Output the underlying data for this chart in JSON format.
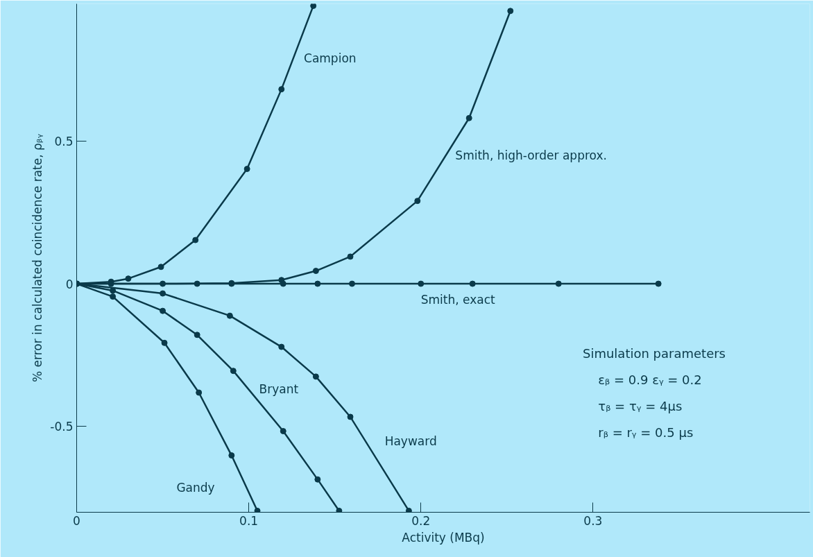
{
  "chart_data": {
    "type": "line",
    "xlabel": "Activity (MBq)",
    "ylabel": "% error in calculated coincidence rate, ρᵦᵧ",
    "xlim": [
      0,
      0.426
    ],
    "ylim": [
      -0.8,
      0.98
    ],
    "xticks": [
      0,
      0.1,
      0.2,
      0.3
    ],
    "yticks": [
      -0.5,
      0,
      0.5
    ],
    "grid": false,
    "marker": "circle",
    "line_style": "solid",
    "series": [
      {
        "name": "Campion",
        "color": "#0a3a4a",
        "x": [
          0,
          0.02,
          0.03,
          0.049,
          0.069,
          0.099,
          0.119,
          0.1375
        ],
        "values": [
          0,
          0.007,
          0.018,
          0.059,
          0.153,
          0.402,
          0.681,
          0.973
        ]
      },
      {
        "name": "Smith, high-order approx.",
        "color": "#0a3a4a",
        "x": [
          0,
          0.05,
          0.09,
          0.119,
          0.139,
          0.159,
          0.198,
          0.228,
          0.252
        ],
        "values": [
          0,
          0,
          0.002,
          0.013,
          0.045,
          0.095,
          0.29,
          0.58,
          0.955
        ]
      },
      {
        "name": "Smith, exact",
        "color": "#0a3a4a",
        "x": [
          0,
          0.02,
          0.07,
          0.09,
          0.12,
          0.14,
          0.16,
          0.2,
          0.23,
          0.28,
          0.338
        ],
        "values": [
          0,
          0,
          0,
          0,
          0,
          0,
          0,
          0,
          0,
          0,
          0
        ]
      },
      {
        "name": "Hayward",
        "color": "#0a3a4a",
        "x": [
          0,
          0.05,
          0.089,
          0.119,
          0.139,
          0.159,
          0.193
        ],
        "values": [
          0,
          -0.034,
          -0.112,
          -0.221,
          -0.325,
          -0.466,
          -0.795
        ]
      },
      {
        "name": "Bryant",
        "color": "#0a3a4a",
        "x": [
          0,
          0.021,
          0.05,
          0.07,
          0.091,
          0.12,
          0.14,
          0.1525
        ],
        "values": [
          0,
          -0.024,
          -0.095,
          -0.179,
          -0.305,
          -0.516,
          -0.685,
          -0.795
        ]
      },
      {
        "name": "Gandy",
        "color": "#0a3a4a",
        "x": [
          0,
          0.021,
          0.051,
          0.071,
          0.09,
          0.105
        ],
        "values": [
          0,
          -0.045,
          -0.207,
          -0.381,
          -0.601,
          -0.795
        ]
      }
    ],
    "annotations": [
      "Simulation parameters",
      "εᵦ = 0.9   εᵧ = 0.2",
      "τᵦ = τᵧ = 4μs",
      "rᵦ = rᵧ = 0.5 μs"
    ]
  }
}
